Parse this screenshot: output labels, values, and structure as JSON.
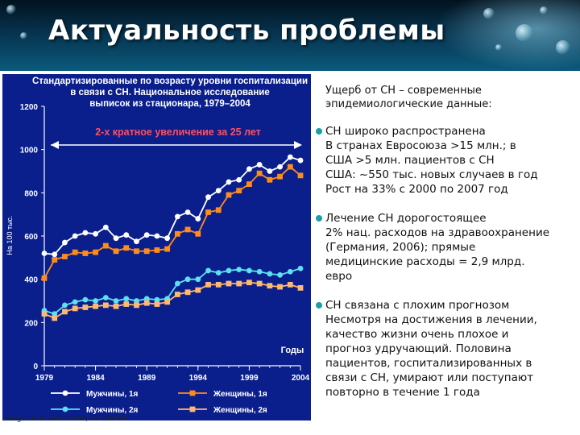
{
  "slide": {
    "title": "Актуальность проблемы",
    "citation": "Fang J. et al. JACC 2008; 52: 428-434."
  },
  "right_panel": {
    "intro_lines": [
      "Ущерб от СН – современные",
      "эпидемиологические данные:"
    ],
    "bullets": [
      {
        "head": "СН широко распространена",
        "lines": [
          "В странах Евросоюза >15 млн.; в",
          "США >5 млн. пациентов с СН",
          "США: ~550 тыс. новых случаев в год",
          "Рост на 33% с 2000 по 2007 год"
        ]
      },
      {
        "head": "Лечение СН дорогостоящее",
        "lines": [
          "2% нац. расходов на здравоохранение",
          "(Германия, 2006); прямые",
          "медицинские расходы = 2,9 млрд.",
          "евро"
        ]
      },
      {
        "head": "СН связана с плохим прогнозом",
        "lines": [
          "Несмотря на достижения в лечении,",
          "качество жизни очень плохое и",
          "прогноз удручающий. Половина",
          "пациентов, госпитализированных в",
          "связи с СН, умирают или поступают",
          "повторно в течение 1 года"
        ]
      }
    ]
  },
  "chart_data": {
    "type": "line",
    "title_lines": [
      "Стандартизированные по возрасту уровни госпитализации",
      "в связи с СН. Национальное исследование",
      "выписок из стационара, 1979–2004"
    ],
    "annotation": "2-х кратное увеличение за 25 лет",
    "ylabel": "На 100 тыс.",
    "xlabel": "Годы",
    "ylim": [
      0,
      1200
    ],
    "yticks": [
      0,
      200,
      400,
      600,
      800,
      1000,
      1200
    ],
    "xlim": [
      1979,
      2004
    ],
    "xticks": [
      1979,
      1984,
      1989,
      1994,
      1999,
      2004
    ],
    "x": [
      1979,
      1980,
      1981,
      1982,
      1983,
      1984,
      1985,
      1986,
      1987,
      1988,
      1989,
      1990,
      1991,
      1992,
      1993,
      1994,
      1995,
      1996,
      1997,
      1998,
      1999,
      2000,
      2001,
      2002,
      2003,
      2004
    ],
    "series": [
      {
        "name": "Мужчины, 1я",
        "values": [
          520,
          515,
          570,
          600,
          615,
          610,
          640,
          590,
          605,
          575,
          605,
          600,
          590,
          690,
          710,
          680,
          780,
          810,
          850,
          860,
          910,
          930,
          900,
          920,
          965,
          950
        ],
        "color": "#ffffff",
        "marker": "circle"
      },
      {
        "name": "Женщины, 1я",
        "values": [
          405,
          490,
          505,
          525,
          520,
          525,
          555,
          530,
          545,
          530,
          530,
          535,
          540,
          610,
          630,
          610,
          710,
          720,
          790,
          810,
          840,
          890,
          860,
          875,
          920,
          880
        ],
        "color": "#ff8c1a",
        "marker": "square"
      },
      {
        "name": "Мужчины, 2я",
        "values": [
          255,
          240,
          280,
          295,
          305,
          300,
          315,
          300,
          310,
          300,
          310,
          305,
          310,
          380,
          400,
          400,
          440,
          430,
          440,
          445,
          440,
          435,
          425,
          420,
          435,
          450
        ],
        "color": "#5ee0f0",
        "marker": "circle"
      },
      {
        "name": "Женщины, 2я",
        "values": [
          240,
          220,
          250,
          265,
          270,
          275,
          280,
          275,
          285,
          280,
          290,
          285,
          295,
          330,
          340,
          350,
          375,
          375,
          380,
          380,
          385,
          380,
          370,
          365,
          375,
          360
        ],
        "color": "#ffb870",
        "marker": "square"
      }
    ],
    "legend": "bottom",
    "colors": {
      "background": "#0a1f8c",
      "title": "#ffffff",
      "annotation": "#ff5060",
      "arrow": "#ffffff",
      "axis": "#ffffff"
    }
  }
}
